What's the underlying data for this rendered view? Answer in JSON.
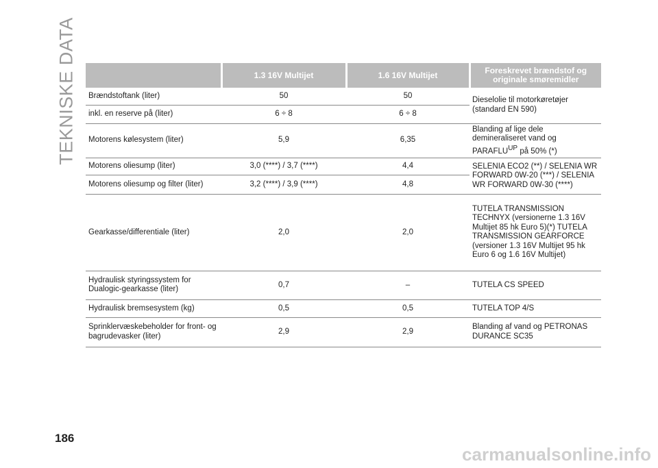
{
  "section_title": "TEKNISKE DATA",
  "page_number": "186",
  "watermark": "carmanualsonline.info",
  "table": {
    "header": [
      "1.3 16V Multijet",
      "1.6 16V Multijet",
      "Foreskrevet brændstof og originale smøremidler"
    ],
    "rows": [
      [
        "Brændstoftank (liter)",
        "50",
        "50",
        "Dieselolie til motorkøretøjer (standard EN 590)"
      ],
      [
        "inkl. en reserve på (liter)",
        "6 ÷ 8",
        "6 ÷ 8"
      ],
      [
        "Motorens kølesystem (liter)",
        "5,9",
        "6,35",
        {
          "text": "Blanding af lige dele demineraliseret vand og PARAFLU",
          "sup": "UP",
          "after": "på 50% (*)"
        }
      ],
      [
        "Motorens oliesump (liter)",
        "3,0 (****) / 3,7 (****)",
        "4,4",
        "SELENIA ECO2 (**) / SELENIA WR FORWARD 0W-20 (***) / SELENIA WR FORWARD 0W-30 (****)"
      ],
      [
        "Motorens oliesump og filter (liter)",
        "3,2 (****) / 3,9 (****)",
        "4,8"
      ],
      [
        "Gearkasse/differentiale (liter)",
        "2,0",
        "2,0",
        "TUTELA TRANSMISSION TECHNYX (versionerne 1.3 16V Multijet 85 hk Euro 5)(*) TUTELA TRANSMISSION GEARFORCE (versioner 1.3 16V Multijet 95 hk Euro 6 og 1.6 16V Multijet)"
      ],
      [
        "Hydraulisk styringssystem for Dualogic-gearkasse (liter)",
        "0,7",
        "–",
        "TUTELA CS SPEED"
      ],
      [
        "Hydraulisk bremsesystem (kg)",
        "0,5",
        "0,5",
        "TUTELA TOP 4/S"
      ],
      [
        "Sprinklervæskebeholder for front- og bagrudevasker (liter)",
        "2,9",
        "2,9",
        "Blanding af vand og PETRONAS DURANCE SC35"
      ]
    ]
  }
}
